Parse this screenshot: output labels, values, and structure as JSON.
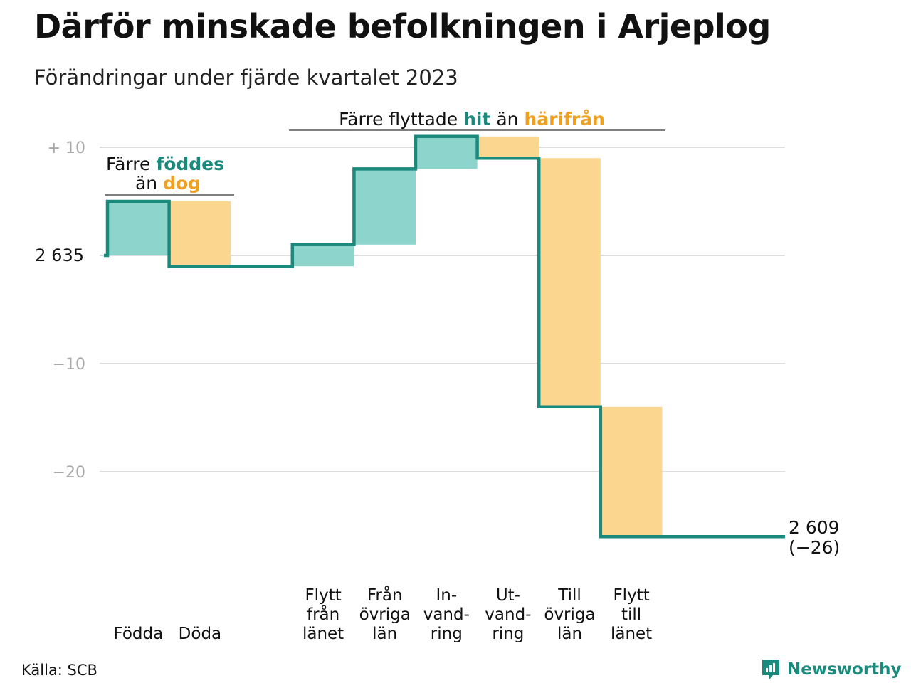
{
  "title": "Därför minskade befolkningen i Arjeplog",
  "subtitle": "Förändringar under fjärde kvartalet 2023",
  "source": "Källa: SCB",
  "brand": "Newsworthy",
  "colors": {
    "increase": "#8dd5cc",
    "decrease": "#fbd68f",
    "line": "#1a8a7d",
    "accent_orange": "#f0a020",
    "grid": "#dddddd"
  },
  "annotations": {
    "births": {
      "pre": "Färre ",
      "green": "föddes",
      "mid": "än ",
      "orange": "dog"
    },
    "migration": {
      "pre": "Färre flyttade ",
      "green": "hit",
      "mid": " än ",
      "orange": "härifrån"
    }
  },
  "chart_data": {
    "type": "waterfall",
    "start_value": 2635,
    "start_label": "2 635",
    "end_value": 2609,
    "end_label": "2 609",
    "end_change_label": "(−26)",
    "y_ticks": [
      {
        "value": 10,
        "label": "+ 10"
      },
      {
        "value": 0,
        "label": ""
      },
      {
        "value": -10,
        "label": "−10"
      },
      {
        "value": -20,
        "label": "−20"
      }
    ],
    "ylim": [
      -27,
      12
    ],
    "steps": [
      {
        "label": [
          "Födda"
        ],
        "value": 5,
        "slot": 0
      },
      {
        "label": [
          "Döda"
        ],
        "value": -6,
        "slot": 1
      },
      {
        "label": [
          "Flytt",
          "från",
          "länet"
        ],
        "value": 2,
        "slot": 3
      },
      {
        "label": [
          "Från",
          "övriga",
          "län"
        ],
        "value": 7,
        "slot": 4
      },
      {
        "label": [
          "In-",
          "vand-",
          "ring"
        ],
        "value": 3,
        "slot": 5
      },
      {
        "label": [
          "Ut-",
          "vand-",
          "ring"
        ],
        "value": -2,
        "slot": 6
      },
      {
        "label": [
          "Till",
          "övriga",
          "län"
        ],
        "value": -23,
        "slot": 7
      },
      {
        "label": [
          "Flytt",
          "till",
          "länet"
        ],
        "value": -12,
        "slot": 8
      }
    ]
  }
}
